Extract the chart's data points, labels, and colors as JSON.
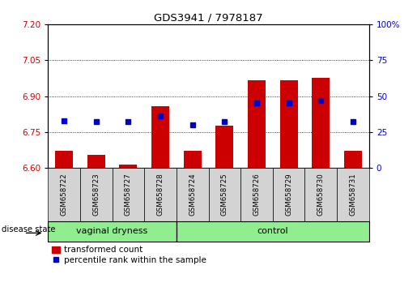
{
  "title": "GDS3941 / 7978187",
  "samples": [
    "GSM658722",
    "GSM658723",
    "GSM658727",
    "GSM658728",
    "GSM658724",
    "GSM658725",
    "GSM658726",
    "GSM658729",
    "GSM658730",
    "GSM658731"
  ],
  "red_values": [
    6.672,
    6.655,
    6.613,
    6.858,
    6.672,
    6.778,
    6.968,
    6.968,
    6.978,
    6.672
  ],
  "blue_values_pct": [
    33,
    32,
    32,
    36,
    30,
    32,
    45,
    45,
    47,
    32
  ],
  "ylim": [
    6.6,
    7.2
  ],
  "yticks": [
    6.6,
    6.75,
    6.9,
    7.05,
    7.2
  ],
  "right_ylim": [
    0,
    100
  ],
  "right_yticks": [
    0,
    25,
    50,
    75,
    100
  ],
  "bar_color": "#cc0000",
  "dot_color": "#0000cc",
  "bar_bottom": 6.6,
  "grid_color": "#000000",
  "left_tick_color": "#cc0000",
  "right_tick_color": "#0000cc",
  "xlabel_left": "disease state",
  "group_spans": [
    {
      "label": "vaginal dryness",
      "start": 0,
      "end": 3
    },
    {
      "label": "control",
      "start": 4,
      "end": 9
    }
  ],
  "group_bg": "#90ee90",
  "sample_bg": "#d3d3d3",
  "legend_items": [
    "transformed count",
    "percentile rank within the sample"
  ]
}
